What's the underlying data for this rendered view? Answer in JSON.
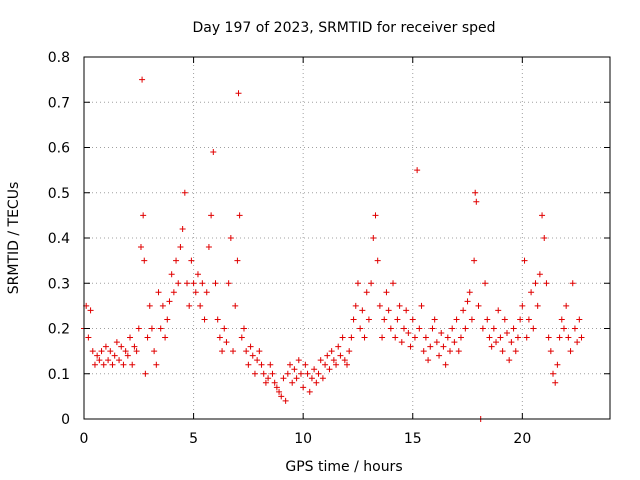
{
  "chart_data": {
    "type": "scatter",
    "title": "Day 197 of 2023, SRMTID for receiver sped",
    "xlabel": "GPS time / hours",
    "ylabel": "SRMTID / TECUs",
    "xlim": [
      0,
      24
    ],
    "ylim": [
      0,
      0.8
    ],
    "grid": true,
    "marker": "plus",
    "color": "#e00000",
    "xticks": [
      {
        "value": 0,
        "label": "0"
      },
      {
        "value": 5,
        "label": "5"
      },
      {
        "value": 10,
        "label": "10"
      },
      {
        "value": 15,
        "label": "15"
      },
      {
        "value": 20,
        "label": "20"
      }
    ],
    "yticks": [
      {
        "value": 0,
        "label": "0"
      },
      {
        "value": 0.1,
        "label": "0.1"
      },
      {
        "value": 0.2,
        "label": "0.2"
      },
      {
        "value": 0.3,
        "label": "0.3"
      },
      {
        "value": 0.4,
        "label": "0.4"
      },
      {
        "value": 0.5,
        "label": "0.5"
      },
      {
        "value": 0.6,
        "label": "0.6"
      },
      {
        "value": 0.7,
        "label": "0.7"
      },
      {
        "value": 0.8,
        "label": "0.8"
      }
    ],
    "series": [
      {
        "name": "SRMTID",
        "x": [
          0.0,
          0.1,
          0.2,
          0.3,
          0.4,
          0.5,
          0.6,
          0.7,
          0.8,
          0.9,
          1.0,
          1.1,
          1.2,
          1.3,
          1.4,
          1.5,
          1.6,
          1.7,
          1.8,
          1.9,
          2.0,
          2.1,
          2.2,
          2.3,
          2.4,
          2.5,
          2.6,
          2.65,
          2.7,
          2.75,
          2.8,
          2.9,
          3.0,
          3.1,
          3.2,
          3.3,
          3.4,
          3.5,
          3.6,
          3.7,
          3.8,
          3.9,
          4.0,
          4.1,
          4.2,
          4.3,
          4.4,
          4.5,
          4.6,
          4.7,
          4.8,
          4.9,
          5.0,
          5.1,
          5.2,
          5.3,
          5.4,
          5.5,
          5.6,
          5.7,
          5.8,
          5.9,
          6.0,
          6.1,
          6.2,
          6.3,
          6.4,
          6.5,
          6.6,
          6.7,
          6.8,
          6.9,
          7.0,
          7.05,
          7.1,
          7.2,
          7.3,
          7.4,
          7.5,
          7.6,
          7.7,
          7.8,
          7.9,
          8.0,
          8.1,
          8.2,
          8.3,
          8.4,
          8.5,
          8.6,
          8.7,
          8.8,
          8.9,
          9.0,
          9.1,
          9.2,
          9.3,
          9.4,
          9.5,
          9.6,
          9.7,
          9.8,
          9.9,
          10.0,
          10.1,
          10.2,
          10.3,
          10.4,
          10.5,
          10.6,
          10.7,
          10.8,
          10.9,
          11.0,
          11.1,
          11.2,
          11.3,
          11.4,
          11.5,
          11.6,
          11.7,
          11.8,
          11.9,
          12.0,
          12.1,
          12.2,
          12.3,
          12.4,
          12.5,
          12.6,
          12.7,
          12.8,
          12.9,
          13.0,
          13.1,
          13.2,
          13.3,
          13.4,
          13.5,
          13.6,
          13.7,
          13.8,
          13.9,
          14.0,
          14.1,
          14.2,
          14.3,
          14.4,
          14.5,
          14.6,
          14.7,
          14.8,
          14.9,
          15.0,
          15.1,
          15.2,
          15.3,
          15.4,
          15.5,
          15.6,
          15.7,
          15.8,
          15.9,
          16.0,
          16.1,
          16.2,
          16.3,
          16.4,
          16.5,
          16.6,
          16.7,
          16.8,
          16.9,
          17.0,
          17.1,
          17.2,
          17.3,
          17.4,
          17.5,
          17.6,
          17.7,
          17.8,
          17.85,
          17.9,
          18.0,
          18.1,
          18.2,
          18.3,
          18.4,
          18.5,
          18.6,
          18.7,
          18.8,
          18.9,
          19.0,
          19.1,
          19.2,
          19.3,
          19.4,
          19.5,
          19.6,
          19.7,
          19.8,
          19.9,
          20.0,
          20.1,
          20.2,
          20.3,
          20.4,
          20.5,
          20.6,
          20.7,
          20.8,
          20.9,
          21.0,
          21.1,
          21.2,
          21.3,
          21.4,
          21.5,
          21.6,
          21.7,
          21.8,
          21.9,
          22.0,
          22.1,
          22.2,
          22.3,
          22.4,
          22.5,
          22.6,
          22.7
        ],
        "y": [
          0.2,
          0.25,
          0.18,
          0.24,
          0.15,
          0.12,
          0.14,
          0.13,
          0.15,
          0.12,
          0.16,
          0.13,
          0.15,
          0.12,
          0.14,
          0.17,
          0.13,
          0.16,
          0.12,
          0.15,
          0.14,
          0.18,
          0.12,
          0.16,
          0.15,
          0.2,
          0.38,
          0.75,
          0.45,
          0.35,
          0.1,
          0.18,
          0.25,
          0.2,
          0.15,
          0.12,
          0.28,
          0.2,
          0.25,
          0.18,
          0.22,
          0.26,
          0.32,
          0.28,
          0.35,
          0.3,
          0.38,
          0.42,
          0.5,
          0.3,
          0.25,
          0.35,
          0.3,
          0.28,
          0.32,
          0.25,
          0.3,
          0.22,
          0.28,
          0.38,
          0.45,
          0.59,
          0.3,
          0.22,
          0.18,
          0.15,
          0.2,
          0.17,
          0.3,
          0.4,
          0.15,
          0.25,
          0.35,
          0.72,
          0.45,
          0.18,
          0.2,
          0.15,
          0.12,
          0.16,
          0.14,
          0.1,
          0.13,
          0.15,
          0.12,
          0.1,
          0.08,
          0.09,
          0.12,
          0.1,
          0.08,
          0.07,
          0.06,
          0.05,
          0.09,
          0.04,
          0.1,
          0.12,
          0.08,
          0.11,
          0.09,
          0.13,
          0.1,
          0.07,
          0.12,
          0.1,
          0.06,
          0.09,
          0.11,
          0.08,
          0.1,
          0.13,
          0.09,
          0.12,
          0.14,
          0.11,
          0.15,
          0.13,
          0.12,
          0.16,
          0.14,
          0.18,
          0.13,
          0.12,
          0.15,
          0.18,
          0.22,
          0.25,
          0.3,
          0.2,
          0.24,
          0.18,
          0.28,
          0.22,
          0.3,
          0.4,
          0.45,
          0.35,
          0.25,
          0.18,
          0.22,
          0.28,
          0.24,
          0.2,
          0.3,
          0.18,
          0.22,
          0.25,
          0.17,
          0.2,
          0.24,
          0.19,
          0.16,
          0.22,
          0.18,
          0.55,
          0.2,
          0.25,
          0.15,
          0.18,
          0.13,
          0.16,
          0.2,
          0.22,
          0.17,
          0.14,
          0.19,
          0.16,
          0.12,
          0.18,
          0.15,
          0.2,
          0.17,
          0.22,
          0.15,
          0.18,
          0.24,
          0.2,
          0.26,
          0.28,
          0.22,
          0.35,
          0.5,
          0.48,
          0.25,
          0.0,
          0.2,
          0.3,
          0.22,
          0.18,
          0.16,
          0.2,
          0.17,
          0.24,
          0.18,
          0.15,
          0.22,
          0.19,
          0.13,
          0.17,
          0.2,
          0.15,
          0.18,
          0.22,
          0.25,
          0.35,
          0.18,
          0.22,
          0.28,
          0.2,
          0.3,
          0.25,
          0.32,
          0.45,
          0.4,
          0.3,
          0.18,
          0.15,
          0.1,
          0.08,
          0.12,
          0.18,
          0.22,
          0.2,
          0.25,
          0.18,
          0.15,
          0.3,
          0.2,
          0.17,
          0.22,
          0.18
        ]
      }
    ]
  }
}
